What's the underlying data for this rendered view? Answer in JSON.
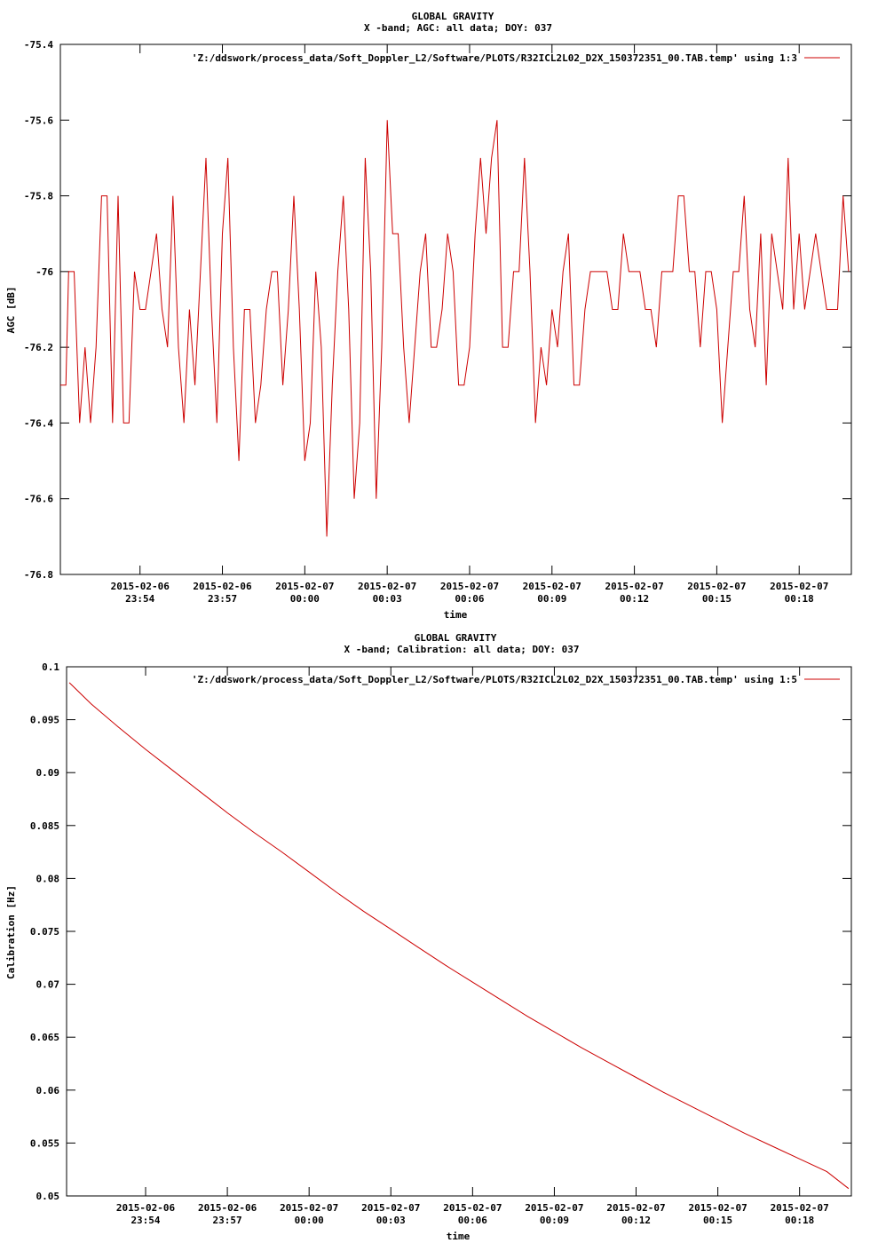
{
  "chart_data": [
    {
      "type": "line",
      "title": "GLOBAL GRAVITY",
      "subtitle": "X -band; AGC: all data; DOY: 037",
      "xlabel": "time",
      "ylabel": "AGC [dB]",
      "ylim": [
        -76.8,
        -75.4
      ],
      "y_ticks": [
        "-75.4",
        "-75.6",
        "-75.8",
        "-76",
        "-76.2",
        "-76.4",
        "-76.6",
        "-76.8"
      ],
      "y_tick_values": [
        -75.4,
        -75.6,
        -75.8,
        -76.0,
        -76.2,
        -76.4,
        -76.6,
        -76.8
      ],
      "x_unit": "minutes",
      "xlim": [
        -8.9,
        19.9
      ],
      "x_ticks": [
        {
          "value": -6,
          "date": "2015-02-06",
          "time": "23:54"
        },
        {
          "value": -3,
          "date": "2015-02-06",
          "time": "23:57"
        },
        {
          "value": 0,
          "date": "2015-02-07",
          "time": "00:00"
        },
        {
          "value": 3,
          "date": "2015-02-07",
          "time": "00:03"
        },
        {
          "value": 6,
          "date": "2015-02-07",
          "time": "00:06"
        },
        {
          "value": 9,
          "date": "2015-02-07",
          "time": "00:09"
        },
        {
          "value": 12,
          "date": "2015-02-07",
          "time": "00:12"
        },
        {
          "value": 15,
          "date": "2015-02-07",
          "time": "00:15"
        },
        {
          "value": 18,
          "date": "2015-02-07",
          "time": "00:18"
        }
      ],
      "legend_position": "top-right",
      "series": [
        {
          "name": "'Z:/ddswork/process_data/Soft_Doppler_L2/Software/PLOTS/R32ICL2L02_D2X_150372351_00.TAB.temp' using 1:3",
          "color": "#cc0000",
          "x": [
            -8.9,
            -8.7,
            -8.6,
            -8.4,
            -8.2,
            -8.0,
            -7.8,
            -7.6,
            -7.4,
            -7.2,
            -7.0,
            -6.8,
            -6.6,
            -6.4,
            -6.2,
            -6.0,
            -5.8,
            -5.6,
            -5.4,
            -5.2,
            -5.0,
            -4.8,
            -4.6,
            -4.4,
            -4.2,
            -4.0,
            -3.8,
            -3.6,
            -3.4,
            -3.2,
            -3.0,
            -2.8,
            -2.6,
            -2.4,
            -2.2,
            -2.0,
            -1.8,
            -1.6,
            -1.4,
            -1.2,
            -1.0,
            -0.8,
            -0.6,
            -0.4,
            -0.2,
            0.0,
            0.2,
            0.4,
            0.6,
            0.8,
            1.0,
            1.2,
            1.4,
            1.6,
            1.8,
            2.0,
            2.2,
            2.4,
            2.6,
            2.8,
            3.0,
            3.2,
            3.4,
            3.6,
            3.8,
            4.0,
            4.2,
            4.4,
            4.6,
            4.8,
            5.0,
            5.2,
            5.4,
            5.6,
            5.8,
            6.0,
            6.2,
            6.4,
            6.6,
            6.8,
            7.0,
            7.2,
            7.4,
            7.6,
            7.8,
            8.0,
            8.2,
            8.4,
            8.6,
            8.8,
            9.0,
            9.2,
            9.4,
            9.6,
            9.8,
            10.0,
            10.2,
            10.4,
            10.6,
            10.8,
            11.0,
            11.2,
            11.4,
            11.6,
            11.8,
            12.0,
            12.2,
            12.4,
            12.6,
            12.8,
            13.0,
            13.2,
            13.4,
            13.6,
            13.8,
            14.0,
            14.2,
            14.4,
            14.6,
            14.8,
            15.0,
            15.2,
            15.4,
            15.6,
            15.8,
            16.0,
            16.2,
            16.4,
            16.6,
            16.8,
            17.0,
            17.2,
            17.4,
            17.6,
            17.8,
            18.0,
            18.2,
            18.4,
            18.6,
            18.8,
            19.0,
            19.2,
            19.4,
            19.6,
            19.8
          ],
          "values": [
            -76.3,
            -76.3,
            -76.0,
            -76.0,
            -76.4,
            -76.2,
            -76.4,
            -76.2,
            -75.8,
            -75.8,
            -76.4,
            -75.8,
            -76.4,
            -76.4,
            -76.0,
            -76.1,
            -76.1,
            -76.0,
            -75.9,
            -76.1,
            -76.2,
            -75.8,
            -76.2,
            -76.4,
            -76.1,
            -76.3,
            -76.0,
            -75.7,
            -76.1,
            -76.4,
            -75.9,
            -75.7,
            -76.2,
            -76.5,
            -76.1,
            -76.1,
            -76.4,
            -76.3,
            -76.1,
            -76.0,
            -76.0,
            -76.3,
            -76.1,
            -75.8,
            -76.1,
            -76.5,
            -76.4,
            -76.0,
            -76.2,
            -76.7,
            -76.3,
            -76.0,
            -75.8,
            -76.1,
            -76.6,
            -76.4,
            -75.7,
            -76.0,
            -76.6,
            -76.2,
            -75.6,
            -75.9,
            -75.9,
            -76.2,
            -76.4,
            -76.2,
            -76.0,
            -75.9,
            -76.2,
            -76.2,
            -76.1,
            -75.9,
            -76.0,
            -76.3,
            -76.3,
            -76.2,
            -75.9,
            -75.7,
            -75.9,
            -75.7,
            -75.6,
            -76.2,
            -76.2,
            -76.0,
            -76.0,
            -75.7,
            -76.0,
            -76.4,
            -76.2,
            -76.3,
            -76.1,
            -76.2,
            -76.0,
            -75.9,
            -76.3,
            -76.3,
            -76.1,
            -76.0,
            -76.0,
            -76.0,
            -76.0,
            -76.1,
            -76.1,
            -75.9,
            -76.0,
            -76.0,
            -76.0,
            -76.1,
            -76.1,
            -76.2,
            -76.0,
            -76.0,
            -76.0,
            -75.8,
            -75.8,
            -76.0,
            -76.0,
            -76.2,
            -76.0,
            -76.0,
            -76.1,
            -76.4,
            -76.2,
            -76.0,
            -76.0,
            -75.8,
            -76.1,
            -76.2,
            -75.9,
            -76.3,
            -75.9,
            -76.0,
            -76.1,
            -75.7,
            -76.1,
            -75.9,
            -76.1,
            -76.0,
            -75.9,
            -76.0,
            -76.1,
            -76.1,
            -76.1,
            -75.8,
            -76.0
          ]
        }
      ]
    },
    {
      "type": "line",
      "title": "GLOBAL GRAVITY",
      "subtitle": "X -band; Calibration: all data; DOY: 037",
      "xlabel": "time",
      "ylabel": "Calibration [Hz]",
      "ylim": [
        0.05,
        0.1
      ],
      "y_ticks": [
        "0.1",
        "0.095",
        "0.09",
        "0.085",
        "0.08",
        "0.075",
        "0.07",
        "0.065",
        "0.06",
        "0.055",
        "0.05"
      ],
      "y_tick_values": [
        0.1,
        0.095,
        0.09,
        0.085,
        0.08,
        0.075,
        0.07,
        0.065,
        0.06,
        0.055,
        0.05
      ],
      "x_unit": "minutes",
      "xlim": [
        -8.9,
        19.9
      ],
      "x_ticks": [
        {
          "value": -6,
          "date": "2015-02-06",
          "time": "23:54"
        },
        {
          "value": -3,
          "date": "2015-02-06",
          "time": "23:57"
        },
        {
          "value": 0,
          "date": "2015-02-07",
          "time": "00:00"
        },
        {
          "value": 3,
          "date": "2015-02-07",
          "time": "00:03"
        },
        {
          "value": 6,
          "date": "2015-02-07",
          "time": "00:06"
        },
        {
          "value": 9,
          "date": "2015-02-07",
          "time": "00:09"
        },
        {
          "value": 12,
          "date": "2015-02-07",
          "time": "00:12"
        },
        {
          "value": 15,
          "date": "2015-02-07",
          "time": "00:15"
        },
        {
          "value": 18,
          "date": "2015-02-07",
          "time": "00:18"
        }
      ],
      "legend_position": "top-right",
      "series": [
        {
          "name": "'Z:/ddswork/process_data/Soft_Doppler_L2/Software/PLOTS/R32ICL2L02_D2X_150372351_00.TAB.temp' using 1:5",
          "color": "#cc0000",
          "x": [
            -8.8,
            -8.0,
            -7.0,
            -6.0,
            -5.0,
            -4.0,
            -3.0,
            -2.0,
            -1.0,
            0.0,
            1.0,
            2.0,
            3.0,
            4.0,
            5.0,
            6.0,
            7.0,
            8.0,
            9.0,
            10.0,
            11.0,
            12.0,
            13.0,
            14.0,
            15.0,
            16.0,
            17.0,
            18.0,
            19.0,
            19.8
          ],
          "values": [
            0.0985,
            0.0965,
            0.0943,
            0.0922,
            0.0902,
            0.0882,
            0.0862,
            0.0843,
            0.0825,
            0.0806,
            0.0787,
            0.0769,
            0.0752,
            0.0735,
            0.0718,
            0.0702,
            0.0686,
            0.067,
            0.0655,
            0.064,
            0.0626,
            0.0612,
            0.0598,
            0.0585,
            0.0572,
            0.0559,
            0.0547,
            0.0535,
            0.0523,
            0.0507
          ]
        }
      ]
    }
  ]
}
